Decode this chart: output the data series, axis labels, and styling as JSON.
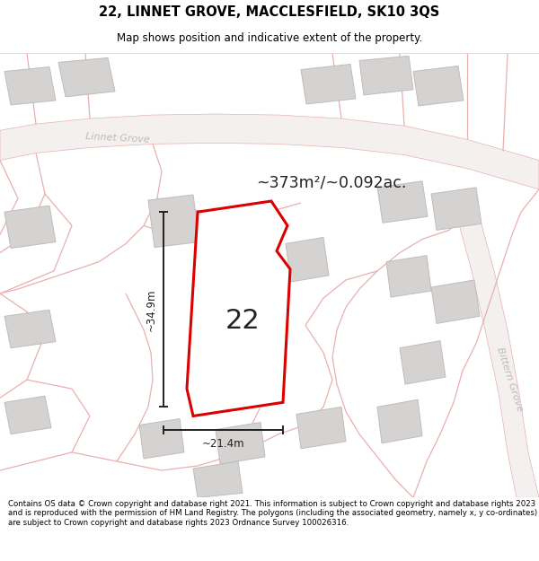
{
  "title": "22, LINNET GROVE, MACCLESFIELD, SK10 3QS",
  "subtitle": "Map shows position and indicative extent of the property.",
  "footer": "Contains OS data © Crown copyright and database right 2021. This information is subject to Crown copyright and database rights 2023 and is reproduced with the permission of HM Land Registry. The polygons (including the associated geometry, namely x, y co-ordinates) are subject to Crown copyright and database rights 2023 Ordnance Survey 100026316.",
  "area_label": "~373m²/~0.092ac.",
  "label_22": "22",
  "dim_height": "~34.9m",
  "dim_width": "~21.4m",
  "road_label_linnet": "Linnet Grove",
  "road_label_bittern": "Bittern Grove",
  "map_bg": "#f2efef",
  "plot_fill": "#ffffff",
  "plot_stroke": "#dd0000",
  "building_fill": "#d5d2d2",
  "building_stroke": "#c0bcbc",
  "road_stroke": "#e8b0b0",
  "dim_color": "#222222",
  "title_fontsize": 10.5,
  "subtitle_fontsize": 8.5,
  "footer_fontsize": 6.2,
  "road_label_color": "#bbbbbb",
  "road_label_fontsize": 8
}
